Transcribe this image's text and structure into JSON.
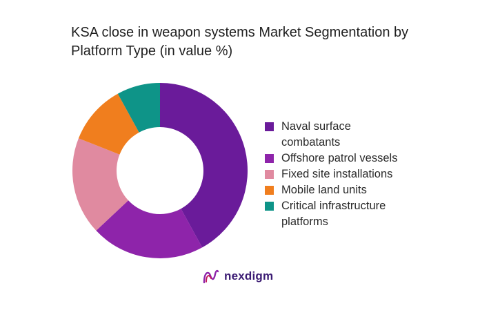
{
  "chart_data": {
    "type": "pie",
    "title": "KSA close in weapon systems Market Segmentation by\nPlatform Type (in value %)",
    "categories": [
      "Naval surface combatants",
      "Offshore patrol vessels",
      "Fixed site installations",
      "Mobile land units",
      "Critical infrastructure platforms"
    ],
    "values": [
      42,
      21,
      18,
      11,
      8
    ],
    "colors": [
      "#6a1b9a",
      "#8e24aa",
      "#e08aa0",
      "#f07e1e",
      "#0e9488"
    ],
    "legend_position": "right",
    "donut": true
  },
  "legend": {
    "items": [
      {
        "label": "Naval surface\ncombatants",
        "color": "#6a1b9a"
      },
      {
        "label": "Offshore patrol vessels",
        "color": "#8e24aa"
      },
      {
        "label": "Fixed site installations",
        "color": "#e08aa0"
      },
      {
        "label": "Mobile land units",
        "color": "#f07e1e"
      },
      {
        "label": "Critical infrastructure\nplatforms",
        "color": "#0e9488"
      }
    ]
  },
  "brand": {
    "name": "nexdigm",
    "logo_icon": "nexdigm-logo-icon",
    "logo_color": "#3b1b73",
    "accent_color": "#c2185b"
  }
}
